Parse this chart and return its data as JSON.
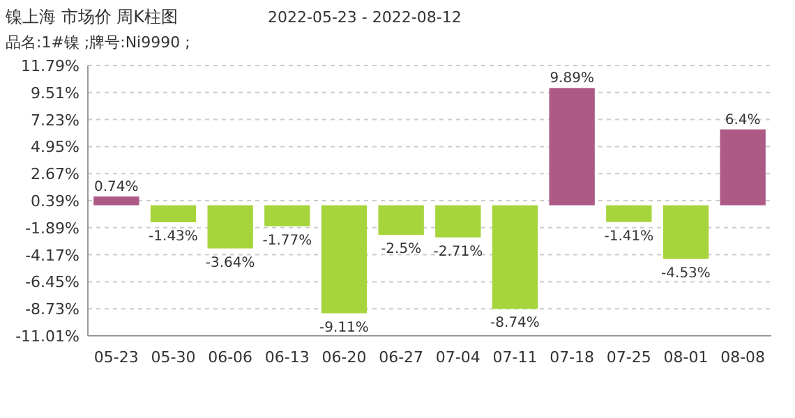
{
  "chart_data": {
    "type": "bar",
    "title": "镍上海 市场价 周K柱图",
    "subtitle": "品名:1#镍 ;牌号:Ni9990 ;",
    "annotations": [
      "2022-05-23 - 2022-08-12"
    ],
    "categories": [
      "05-23",
      "05-30",
      "06-06",
      "06-13",
      "06-20",
      "06-27",
      "07-04",
      "07-11",
      "07-18",
      "07-25",
      "08-01",
      "08-08"
    ],
    "values": [
      0.74,
      -1.43,
      -3.64,
      -1.77,
      -9.11,
      -2.5,
      -2.71,
      -8.74,
      9.89,
      -1.41,
      -4.53,
      6.4
    ],
    "value_labels": [
      "0.74%",
      "-1.43%",
      "-3.64%",
      "-1.77%",
      "-9.11%",
      "-2.5%",
      "-2.71%",
      "-8.74%",
      "9.89%",
      "-1.41%",
      "-4.53%",
      "6.4%"
    ],
    "colors": [
      "#ad5a85",
      "#a6d43b",
      "#a6d43b",
      "#a6d43b",
      "#a6d43b",
      "#a6d43b",
      "#a6d43b",
      "#a6d43b",
      "#ad5a85",
      "#a6d43b",
      "#a6d43b",
      "#ad5a85"
    ],
    "ylim": [
      -11.01,
      11.79
    ],
    "yticks": [
      {
        "value": 11.79,
        "label": "11.79%"
      },
      {
        "value": 9.51,
        "label": "9.51%"
      },
      {
        "value": 7.23,
        "label": "7.23%"
      },
      {
        "value": 4.95,
        "label": "4.95%"
      },
      {
        "value": 2.67,
        "label": "2.67%"
      },
      {
        "value": 0.39,
        "label": "0.39%"
      },
      {
        "value": -1.89,
        "label": "-1.89%"
      },
      {
        "value": -4.17,
        "label": "-4.17%"
      },
      {
        "value": -6.45,
        "label": "-6.45%"
      },
      {
        "value": -8.73,
        "label": "-8.73%"
      },
      {
        "value": -11.01,
        "label": "-11.01%"
      }
    ],
    "grid": "y"
  }
}
